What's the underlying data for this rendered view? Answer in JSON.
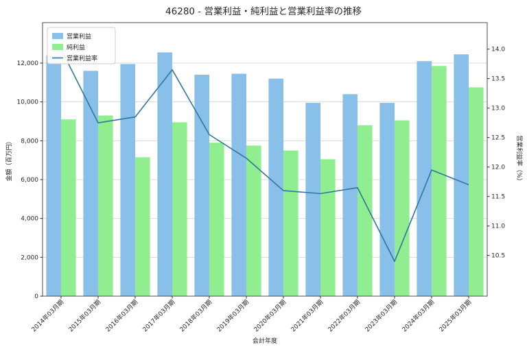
{
  "title": "46280 - 営業利益・純利益と営業利益率の推移",
  "chart_data": {
    "type": "bar+line",
    "categories": [
      "2014年03月期",
      "2015年03月期",
      "2016年03月期",
      "2017年03月期",
      "2018年03月期",
      "2019年03月期",
      "2020年03月期",
      "2021年03月期",
      "2022年03月期",
      "2023年03月期",
      "2024年03月期",
      "2025年03月期"
    ],
    "series": [
      {
        "name": "営業利益",
        "type": "bar",
        "axis": "left",
        "color": "#88c0ea",
        "values": [
          12400,
          11600,
          11950,
          12550,
          11400,
          11450,
          11200,
          9950,
          10400,
          9950,
          12100,
          12450
        ]
      },
      {
        "name": "純利益",
        "type": "bar",
        "axis": "left",
        "color": "#90ee90",
        "values": [
          9100,
          9300,
          7150,
          8950,
          7900,
          7750,
          7500,
          7050,
          8800,
          9050,
          11850,
          10750
        ]
      },
      {
        "name": "営業利益率",
        "type": "line",
        "axis": "right",
        "color": "#31749e",
        "values": [
          14.0,
          12.75,
          12.85,
          13.65,
          12.55,
          12.15,
          11.6,
          11.55,
          11.65,
          10.4,
          11.95,
          11.7
        ]
      }
    ],
    "title": "46280 - 営業利益・純利益と営業利益率の推移",
    "xlabel": "会計年度",
    "ylabel_left": "金額（百万円）",
    "ylabel_right": "営業利益率（%）",
    "left_ticks": [
      "0",
      "2,000",
      "4,000",
      "6,000",
      "8,000",
      "10,000",
      "12,000"
    ],
    "left_tick_values": [
      0,
      2000,
      4000,
      6000,
      8000,
      10000,
      12000
    ],
    "right_ticks": [
      "10.5",
      "11.0",
      "11.5",
      "12.0",
      "12.5",
      "13.0",
      "13.5",
      "14.0"
    ],
    "right_tick_values": [
      10.5,
      11.0,
      11.5,
      12.0,
      12.5,
      13.0,
      13.5,
      14.0
    ],
    "ylim_left": [
      0,
      14082
    ],
    "ylim_right": [
      9.81,
      14.45
    ],
    "grid": true,
    "legend": [
      "営業利益",
      "純利益",
      "営業利益率"
    ],
    "legend_position": "upper-left",
    "grid_color": "#d9d9d9",
    "spine_color": "#4d4d4d"
  }
}
